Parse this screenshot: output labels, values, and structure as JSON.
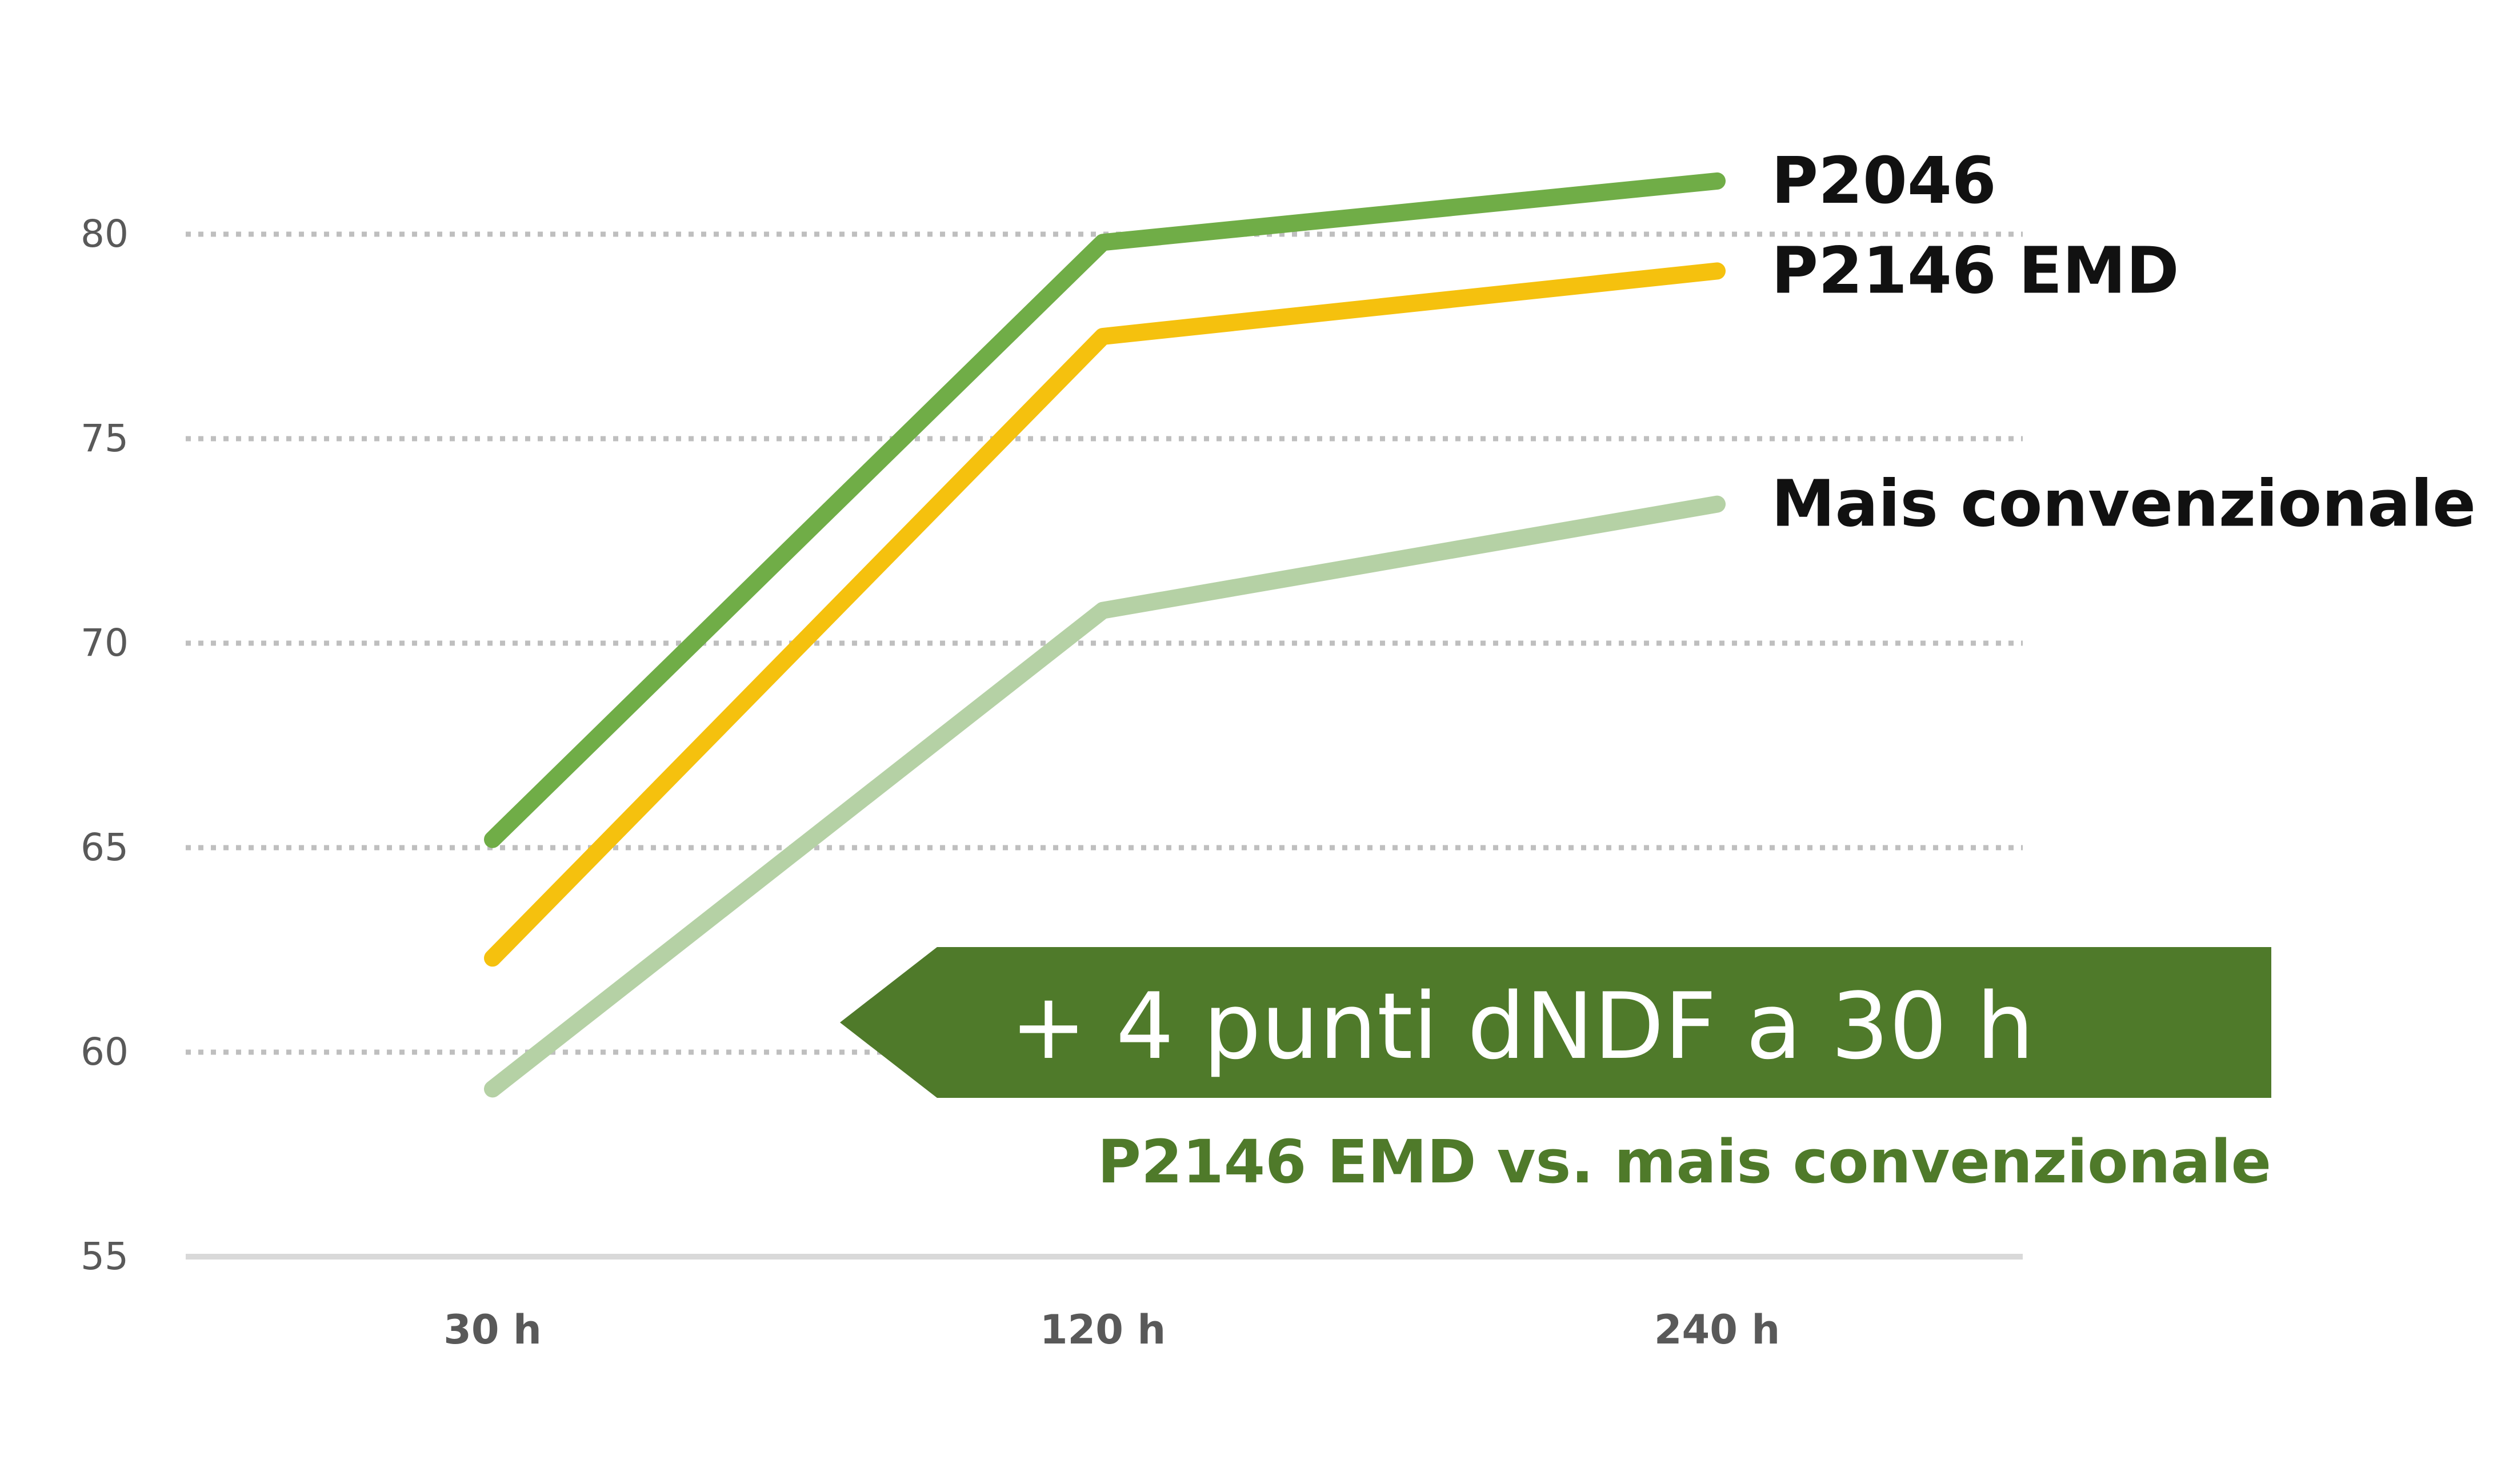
{
  "chart_data": {
    "type": "line",
    "categories": [
      "30 h",
      "120 h",
      "240 h"
    ],
    "series": [
      {
        "name": "P2046",
        "values": [
          65.2,
          79.8,
          81.3
        ],
        "color": "#70ad47"
      },
      {
        "name": "P2146 EMD",
        "values": [
          62.3,
          77.5,
          79.1
        ],
        "color": "#f5c10e"
      },
      {
        "name": "Mais convenzionale",
        "values": [
          59.1,
          70.8,
          73.4
        ],
        "color": "#b5d1a5"
      }
    ],
    "yticks": [
      55,
      60,
      65,
      70,
      75,
      80
    ],
    "ylim": [
      55,
      82
    ],
    "grid": true,
    "grid_style": "dotted",
    "title": "",
    "xlabel": "",
    "ylabel": "",
    "annotation": {
      "banner_text": "+ 4 punti dNDF a 30 h",
      "banner_color": "#4f7a2a",
      "subtitle": "P2146 EMD vs. mais convenzionale",
      "subtitle_color": "#4f7a2a"
    }
  }
}
